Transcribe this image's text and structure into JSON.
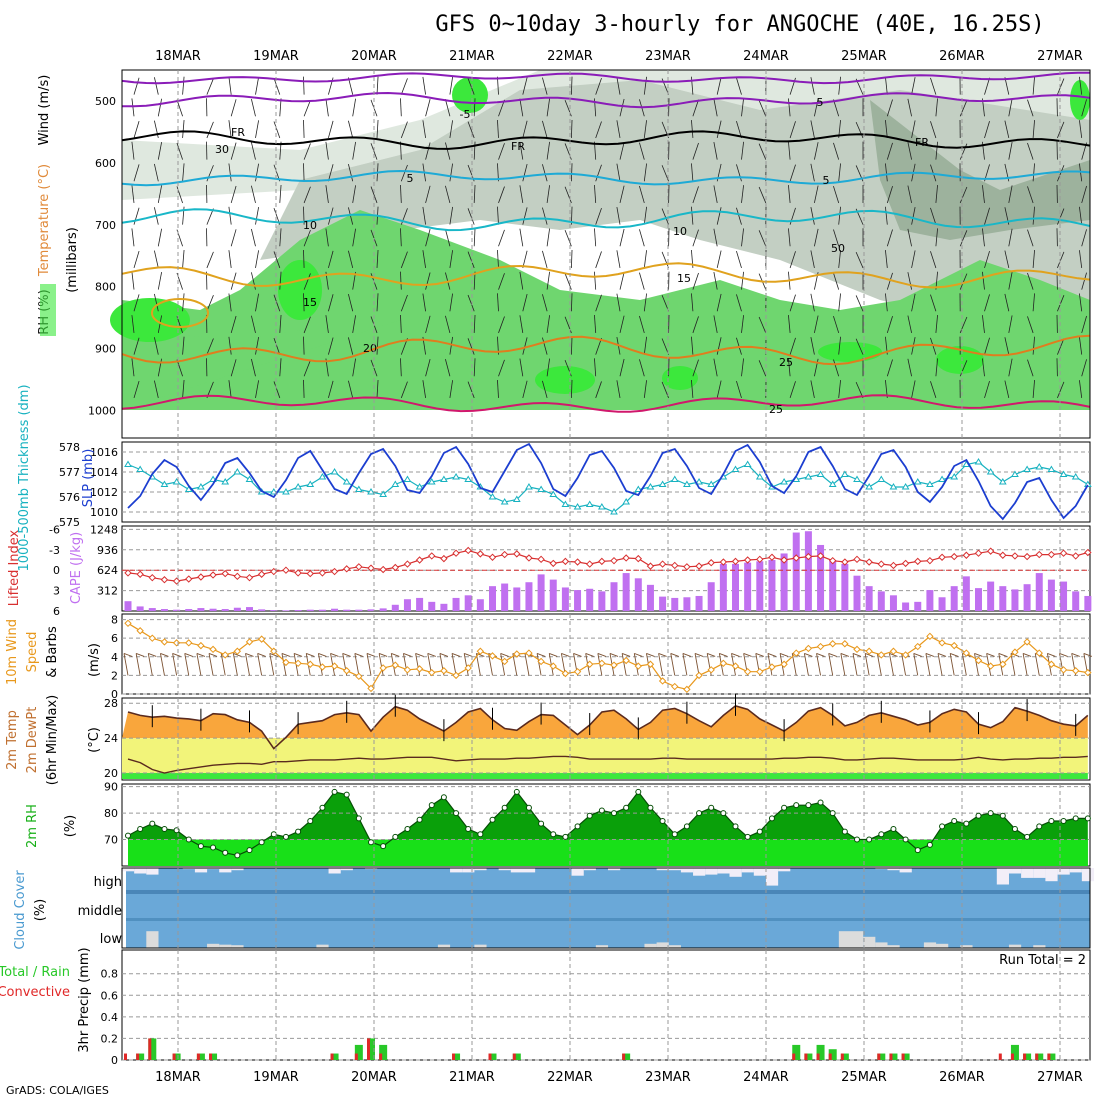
{
  "title": "GFS 0~10day 3-hourly for ANGOCHE (40E, 16.25S)",
  "credit": "GrADS: COLA/IGES",
  "dates": [
    "18MAR",
    "19MAR",
    "20MAR",
    "21MAR",
    "22MAR",
    "23MAR",
    "24MAR",
    "25MAR",
    "26MAR",
    "27MAR"
  ],
  "panels": {
    "upper": {
      "ylabels": [
        "RH (%)",
        "Temperature (°C)",
        "Wind (m/s)"
      ],
      "ylabel2": "(millibars)",
      "ticks": [
        "500",
        "600",
        "700",
        "800",
        "900",
        "1000"
      ],
      "contour_labels": [
        "-5",
        "5",
        "FR",
        "FR",
        "FR",
        "5",
        "5",
        "10",
        "10",
        "15",
        "15",
        "20",
        "25",
        "25",
        "30",
        "50"
      ],
      "colors": {
        "rh_low": "#dfe8df",
        "rh_mid": "#c3cfc3",
        "rh_high": "#9db29d",
        "rh_wet": "#6fd66f",
        "rh_sat": "#3ce83c",
        "t_minus": "#8a1cb8",
        "t_fr": "#000000",
        "t_5": "#1eaad6",
        "t_10": "#19b7c8",
        "t_15": "#e0a21e",
        "t_20": "#e07d1e",
        "t_25": "#d0186c"
      }
    },
    "thickness": {
      "ylabel_left": "1000-500mb Thickness (dm)",
      "ylabel_right": "SLP (mb)",
      "ticks_left": [
        "578",
        "577",
        "576",
        "575"
      ],
      "ticks_right": [
        "1016",
        "1014",
        "1012",
        "1010"
      ],
      "colors": {
        "thickness": "#18b2c0",
        "slp": "#1c3ed0"
      }
    },
    "instability": {
      "ylabel_left": "Lifted Index",
      "ylabel_right": "CAPE (J/kg)",
      "ticks_left": [
        "-6",
        "-3",
        "0",
        "3",
        "6"
      ],
      "ticks_right": [
        "1248",
        "936",
        "624",
        "312"
      ],
      "colors": {
        "li": "#d83030",
        "cape": "#c070f0"
      }
    },
    "wind10": {
      "ylabel": [
        "10m Wind",
        "Speed",
        "& Barbs"
      ],
      "unit": "(m/s)",
      "ticks": [
        "8",
        "6",
        "4",
        "2",
        "0"
      ],
      "colors": {
        "speed": "#e8981c",
        "barb": "#7a5030"
      }
    },
    "temp2m": {
      "ylabel": [
        "2m Temp",
        "2m DewPt",
        "(6hr Min/Max)"
      ],
      "unit": "(°C)",
      "ticks": [
        "28",
        "24",
        "20"
      ],
      "colors": {
        "temp": "#f9a63c",
        "dew": "#f2f47a",
        "low": "#3ce83c",
        "line": "#5a2a1e"
      }
    },
    "rh2m": {
      "ylabel": "2m RH",
      "unit": "(%)",
      "ticks": [
        "90",
        "80",
        "70"
      ],
      "colors": {
        "dark": "#0aa00a",
        "light": "#18e018"
      }
    },
    "cloud": {
      "ylabel": "Cloud Cover",
      "unit": "(%)",
      "levels": [
        "high",
        "middle",
        "low"
      ],
      "colors": {
        "sky": "#6aa8d8",
        "cloud": "#dcdcdc",
        "high_cloud": "#f2eef8"
      }
    },
    "precip": {
      "ylabel_a": "Total / Rain",
      "ylabel_b": "Convective",
      "ylabel_c": "3hr Precip (mm)",
      "ticks": [
        "0.8",
        "0.6",
        "0.4",
        "0.2",
        "0"
      ],
      "run_total": "Run Total = 2",
      "colors": {
        "total": "#28c828",
        "conv": "#e02828"
      }
    }
  },
  "chart_data": {
    "type": "meteogram",
    "start": "17MAR 15Z",
    "step_hours": 3,
    "slp_mb": [
      1010.4,
      1011.6,
      1013.8,
      1015.2,
      1014.5,
      1012.6,
      1011.2,
      1012.8,
      1014.9,
      1015.4,
      1013.9,
      1012.1,
      1011.5,
      1013.2,
      1015.4,
      1016.1,
      1014.2,
      1012.3,
      1011.8,
      1013.9,
      1015.8,
      1016.3,
      1014.6,
      1012.2,
      1011.9,
      1013.6,
      1015.9,
      1016.5,
      1014.8,
      1012.4,
      1012.0,
      1014.1,
      1016.2,
      1016.8,
      1014.9,
      1012.3,
      1011.6,
      1013.4,
      1015.7,
      1016.1,
      1014.4,
      1012.1,
      1011.7,
      1013.6,
      1015.9,
      1016.3,
      1014.6,
      1012.4,
      1011.8,
      1013.8,
      1016.1,
      1016.7,
      1015.0,
      1012.6,
      1011.9,
      1013.6,
      1016.0,
      1016.5,
      1014.6,
      1012.3,
      1011.7,
      1013.6,
      1015.8,
      1016.2,
      1014.5,
      1012.0,
      1011.0,
      1012.5,
      1014.6,
      1015.2,
      1013.1,
      1010.6,
      1009.3,
      1010.9,
      1013.0,
      1013.4,
      1011.2,
      1009.4,
      1010.6,
      1012.7
    ],
    "thickness_dm": [
      577.3,
      577.1,
      576.8,
      576.5,
      576.6,
      576.3,
      576.4,
      576.7,
      576.6,
      577.0,
      576.7,
      576.2,
      576.2,
      576.2,
      576.4,
      576.5,
      576.8,
      577.0,
      576.6,
      576.3,
      576.2,
      576.1,
      576.5,
      576.7,
      576.4,
      576.6,
      576.7,
      576.8,
      576.7,
      576.4,
      576.0,
      575.8,
      575.9,
      576.4,
      576.3,
      576.1,
      575.7,
      575.6,
      575.7,
      575.6,
      575.4,
      575.8,
      576.3,
      576.4,
      576.5,
      576.7,
      576.5,
      576.6,
      576.5,
      576.8,
      577.1,
      577.3,
      576.8,
      576.4,
      576.6,
      576.7,
      576.8,
      576.9,
      576.5,
      576.9,
      576.7,
      576.4,
      576.7,
      576.4,
      576.4,
      576.6,
      576.5,
      576.7,
      576.8,
      577.3,
      577.4,
      577.0,
      576.6,
      576.9,
      577.1,
      577.2,
      577.1,
      576.9,
      576.8,
      576.5
    ],
    "lifted_index": [
      0.4,
      0.6,
      1.1,
      1.4,
      1.6,
      1.3,
      1.0,
      0.7,
      0.5,
      0.9,
      1.1,
      0.6,
      0.2,
      0.0,
      0.4,
      0.5,
      0.4,
      0.2,
      -0.2,
      -0.5,
      -0.3,
      -0.1,
      -0.4,
      -0.9,
      -1.5,
      -2.1,
      -1.7,
      -2.5,
      -2.9,
      -2.4,
      -1.9,
      -2.3,
      -2.4,
      -1.8,
      -1.6,
      -1.0,
      -1.3,
      -1.2,
      -0.9,
      -1.3,
      -1.4,
      -1.8,
      -1.7,
      -0.6,
      -0.9,
      -0.7,
      -0.5,
      -0.6,
      -1.1,
      -1.2,
      -1.3,
      -1.5,
      -1.6,
      -1.9,
      -1.5,
      -1.8,
      -2.0,
      -2.1,
      -1.4,
      -1.2,
      -1.6,
      -1.2,
      -0.9,
      -0.7,
      -1.0,
      -1.3,
      -1.4,
      -1.9,
      -2.0,
      -2.2,
      -2.5,
      -2.8,
      -2.2,
      -2.1,
      -2.0,
      -2.3,
      -2.3,
      -2.5,
      -2.1,
      -2.6
    ],
    "cape": [
      150,
      70,
      45,
      30,
      20,
      30,
      45,
      35,
      30,
      50,
      60,
      25,
      15,
      10,
      15,
      20,
      20,
      35,
      20,
      20,
      25,
      40,
      95,
      180,
      200,
      140,
      110,
      200,
      240,
      180,
      380,
      420,
      360,
      440,
      560,
      480,
      360,
      320,
      340,
      300,
      440,
      580,
      500,
      400,
      220,
      200,
      210,
      230,
      440,
      720,
      720,
      740,
      760,
      780,
      880,
      1200,
      1220,
      1010,
      780,
      720,
      540,
      380,
      300,
      240,
      130,
      140,
      320,
      210,
      380,
      530,
      350,
      450,
      380,
      330,
      410,
      580,
      480,
      450,
      300,
      230
    ],
    "wind_speed": [
      7.6,
      6.8,
      6.0,
      5.6,
      5.5,
      5.5,
      5.2,
      4.8,
      4.2,
      4.6,
      5.6,
      5.9,
      4.6,
      3.4,
      3.3,
      3.2,
      2.9,
      3.0,
      2.5,
      1.9,
      0.6,
      2.8,
      3.1,
      2.6,
      2.7,
      2.3,
      2.5,
      2.0,
      2.8,
      4.6,
      4.1,
      3.5,
      4.3,
      4.4,
      3.5,
      3.0,
      2.2,
      2.4,
      3.2,
      3.3,
      3.1,
      3.6,
      3.0,
      3.2,
      1.4,
      0.8,
      0.5,
      2.0,
      2.6,
      3.3,
      3.0,
      2.4,
      2.4,
      2.9,
      3.2,
      4.4,
      4.9,
      5.1,
      5.4,
      5.4,
      4.8,
      4.6,
      4.2,
      4.6,
      4.2,
      5.1,
      6.2,
      5.5,
      5.2,
      4.4,
      3.6,
      3.0,
      3.2,
      4.5,
      5.6,
      4.4,
      3.2,
      2.6,
      2.5,
      2.3
    ],
    "temp2m": [
      27.0,
      26.6,
      26.4,
      26.5,
      26.3,
      26.2,
      26.0,
      26.8,
      26.7,
      26.1,
      25.8,
      24.8,
      22.8,
      24.1,
      25.6,
      25.8,
      26.0,
      26.7,
      26.9,
      26.7,
      24.8,
      26.4,
      27.6,
      27.2,
      26.2,
      25.5,
      24.8,
      25.8,
      27.0,
      27.4,
      26.1,
      25.1,
      24.9,
      25.9,
      26.7,
      26.6,
      25.5,
      24.4,
      25.5,
      27.0,
      27.2,
      26.2,
      25.0,
      25.8,
      27.2,
      27.4,
      26.8,
      26.0,
      25.3,
      26.6,
      27.7,
      27.3,
      26.2,
      25.5,
      24.8,
      25.8,
      27.1,
      27.5,
      26.6,
      25.4,
      25.8,
      26.6,
      26.9,
      26.5,
      26.1,
      25.5,
      25.8,
      26.8,
      27.3,
      27.0,
      25.6,
      25.2,
      25.9,
      27.5,
      27.1,
      26.6,
      26.0,
      25.6,
      25.4,
      26.6
    ],
    "dewpt2m": [
      21.6,
      21.2,
      20.4,
      20.0,
      20.3,
      20.5,
      20.7,
      20.9,
      21.0,
      21.1,
      21.1,
      21.0,
      21.3,
      21.3,
      21.4,
      21.5,
      21.5,
      21.5,
      21.6,
      21.7,
      21.6,
      21.6,
      21.7,
      21.8,
      21.8,
      21.8,
      21.6,
      21.4,
      21.5,
      21.6,
      21.6,
      21.6,
      21.7,
      21.7,
      21.8,
      21.9,
      21.9,
      21.8,
      21.6,
      21.6,
      21.6,
      21.6,
      21.6,
      21.6,
      21.7,
      21.7,
      21.6,
      21.6,
      21.6,
      21.6,
      21.6,
      21.6,
      21.6,
      21.6,
      21.7,
      21.7,
      21.8,
      21.8,
      21.7,
      21.5,
      21.5,
      21.6,
      21.7,
      21.7,
      21.6,
      21.5,
      21.5,
      21.5,
      21.5,
      21.6,
      21.8,
      21.6,
      21.5,
      21.6,
      21.6,
      21.7,
      21.7,
      21.8,
      21.8,
      21.9
    ],
    "rh2m": [
      71.5,
      74.0,
      76.0,
      74.0,
      73.5,
      70.0,
      67.5,
      67.0,
      65.0,
      64.0,
      66.0,
      69.0,
      72.0,
      71.0,
      73.0,
      77.0,
      82.0,
      88.0,
      87.0,
      78.0,
      69.0,
      67.5,
      71.0,
      74.0,
      77.5,
      83.0,
      86.0,
      80.0,
      74.0,
      72.0,
      77.5,
      82.0,
      88.0,
      82.0,
      76.0,
      72.0,
      71.0,
      75.0,
      79.0,
      81.0,
      80.0,
      82.0,
      88.0,
      82.0,
      77.0,
      72.0,
      75.0,
      80.0,
      82.0,
      80.0,
      75.0,
      71.0,
      73.0,
      78.0,
      82.0,
      83.0,
      83.0,
      84.0,
      80.0,
      73.0,
      70.0,
      70.0,
      72.0,
      74.0,
      70.0,
      66.0,
      68.0,
      75.0,
      77.0,
      76.0,
      79.0,
      80.0,
      79.0,
      74.0,
      71.0,
      75.0,
      77.0,
      77.0,
      78.0,
      78.0
    ],
    "cloud_high": [
      0.15,
      0.25,
      0.3,
      0,
      0,
      0.05,
      0.2,
      0.05,
      0.2,
      0.1,
      0,
      0,
      0,
      0,
      0,
      0,
      0,
      0.25,
      0.1,
      0,
      0.05,
      0,
      0,
      0,
      0,
      0,
      0,
      0.2,
      0.2,
      0.1,
      0,
      0.1,
      0.2,
      0.2,
      0,
      0,
      0,
      0.35,
      0.1,
      0,
      0.1,
      0,
      0,
      0,
      0.1,
      0.1,
      0.2,
      0.35,
      0.3,
      0.25,
      0.4,
      0.2,
      0.35,
      0.8,
      0.15,
      0,
      0,
      0,
      0,
      0,
      0,
      0,
      0.05,
      0.1,
      0.2,
      0,
      0,
      0,
      0,
      0,
      0,
      0,
      0.75,
      0.25,
      0.45,
      0.45,
      0.6,
      0.3,
      0.2,
      0.6
    ],
    "cloud_low": [
      0,
      0,
      0.6,
      0,
      0,
      0,
      0,
      0.15,
      0.12,
      0.1,
      0,
      0,
      0,
      0,
      0,
      0,
      0.12,
      0,
      0,
      0,
      0,
      0,
      0,
      0,
      0,
      0,
      0.12,
      0,
      0,
      0.12,
      0,
      0,
      0,
      0,
      0,
      0,
      0,
      0,
      0,
      0.1,
      0,
      0,
      0,
      0.15,
      0.2,
      0.1,
      0,
      0,
      0,
      0,
      0,
      0,
      0,
      0,
      0,
      0,
      0,
      0,
      0,
      0.6,
      0.6,
      0.4,
      0.2,
      0.1,
      0,
      0,
      0.2,
      0.15,
      0,
      0.1,
      0,
      0,
      0,
      0.12,
      0,
      0.1,
      0,
      0,
      0,
      0
    ],
    "precip_total": [
      0.0,
      0.06,
      0.2,
      0.0,
      0.06,
      0.0,
      0.06,
      0.06,
      0.0,
      0,
      0,
      0,
      0,
      0,
      0,
      0,
      0,
      0.06,
      0.0,
      0.14,
      0.2,
      0.14,
      0,
      0,
      0,
      0,
      0,
      0.06,
      0,
      0,
      0.06,
      0,
      0.06,
      0,
      0,
      0,
      0,
      0,
      0,
      0,
      0,
      0.06,
      0,
      0,
      0,
      0,
      0,
      0,
      0,
      0,
      0,
      0,
      0,
      0,
      0,
      0.14,
      0.06,
      0.14,
      0.1,
      0.06,
      0,
      0,
      0.06,
      0.06,
      0.06,
      0,
      0,
      0,
      0,
      0,
      0,
      0,
      0,
      0.14,
      0.06,
      0.06,
      0.06,
      0,
      0,
      0
    ],
    "precip_conv": [
      0.06,
      0.06,
      0.2,
      0.0,
      0.06,
      0.0,
      0.06,
      0.06,
      0.0,
      0,
      0,
      0,
      0,
      0,
      0,
      0,
      0,
      0.06,
      0.0,
      0.06,
      0.2,
      0.06,
      0,
      0,
      0,
      0,
      0,
      0.06,
      0,
      0,
      0.06,
      0,
      0.06,
      0,
      0,
      0,
      0,
      0,
      0,
      0,
      0,
      0.06,
      0,
      0,
      0,
      0,
      0,
      0,
      0,
      0,
      0,
      0,
      0,
      0,
      0,
      0.06,
      0.06,
      0.06,
      0.06,
      0.06,
      0,
      0,
      0.06,
      0.06,
      0.06,
      0,
      0,
      0,
      0,
      0,
      0,
      0,
      0.06,
      0.06,
      0.06,
      0.06,
      0.06,
      0,
      0,
      0
    ]
  }
}
